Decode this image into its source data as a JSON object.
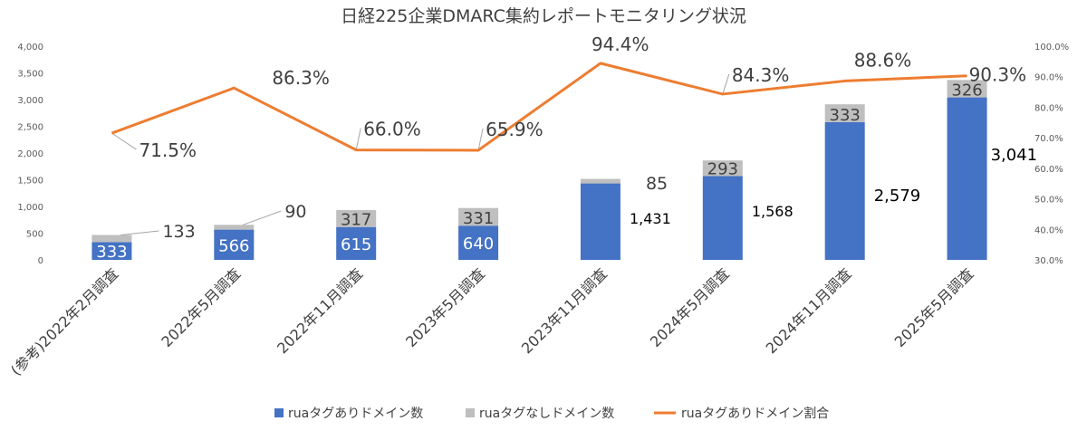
{
  "chart_data": {
    "type": "bar",
    "title": "日経225企業DMARC集約レポートモニタリング状況",
    "categories": [
      "(参考)2022年2月調査",
      "2022年5月調査",
      "2022年11月調査",
      "2023年5月調査",
      "2023年11月調査",
      "2024年5月調査",
      "2024年11月調査",
      "2025年5月調査"
    ],
    "series": [
      {
        "name": "ruaタグありドメイン数",
        "kind": "stacked-bar",
        "color": "#4472c4",
        "values": [
          333,
          566,
          615,
          640,
          1431,
          1568,
          2579,
          3041
        ],
        "labels": [
          "333",
          "566",
          "615",
          "640",
          "1,431",
          "1,568",
          "2,579",
          "3,041"
        ]
      },
      {
        "name": "ruaタグなしドメイン数",
        "kind": "stacked-bar",
        "color": "#bfbfbf",
        "values": [
          133,
          90,
          317,
          331,
          85,
          293,
          333,
          326
        ],
        "labels": [
          "133",
          "90",
          "317",
          "331",
          "85",
          "293",
          "333",
          "326"
        ]
      },
      {
        "name": "ruaタグありドメイン割合",
        "kind": "line",
        "axis": "right",
        "color": "#ed7d31",
        "values": [
          71.5,
          86.3,
          66.0,
          65.9,
          94.4,
          84.3,
          88.6,
          90.3
        ],
        "labels": [
          "71.5%",
          "86.3%",
          "66.0%",
          "65.9%",
          "94.4%",
          "84.3%",
          "88.6%",
          "90.3%"
        ]
      }
    ],
    "y_left": {
      "min": 0,
      "max": 4000,
      "step": 500,
      "ticks": [
        "0",
        "500",
        "1,000",
        "1,500",
        "2,000",
        "2,500",
        "3,000",
        "3,500",
        "4,000"
      ]
    },
    "y_right": {
      "min": 30,
      "max": 100,
      "step": 10,
      "ticks": [
        "30.0%",
        "40.0%",
        "50.0%",
        "60.0%",
        "70.0%",
        "80.0%",
        "90.0%",
        "100.0%"
      ]
    },
    "legend": {
      "position": "bottom"
    },
    "grid": false
  }
}
